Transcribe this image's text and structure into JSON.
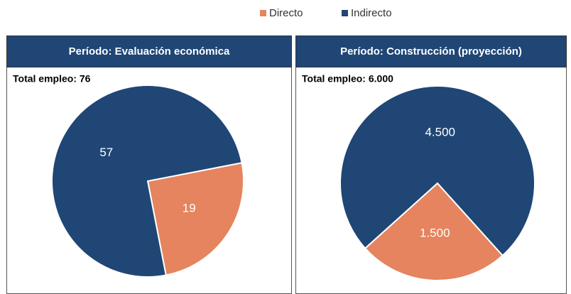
{
  "chart_data": [
    {
      "type": "pie",
      "title": "Período: Evaluación económica",
      "subtitle": "Total empleo: 76",
      "categories": [
        "Directo",
        "Indirecto"
      ],
      "values": [
        19,
        57
      ],
      "colors": [
        "#e5845e",
        "#1f4675"
      ]
    },
    {
      "type": "pie",
      "title": "Período: Construcción (proyección)",
      "subtitle": "Total empleo: 6.000",
      "categories": [
        "Directo",
        "Indirecto"
      ],
      "values": [
        1500,
        4500
      ],
      "value_labels": [
        "1.500",
        "4.500"
      ],
      "colors": [
        "#e5845e",
        "#1f4675"
      ]
    }
  ]
}
